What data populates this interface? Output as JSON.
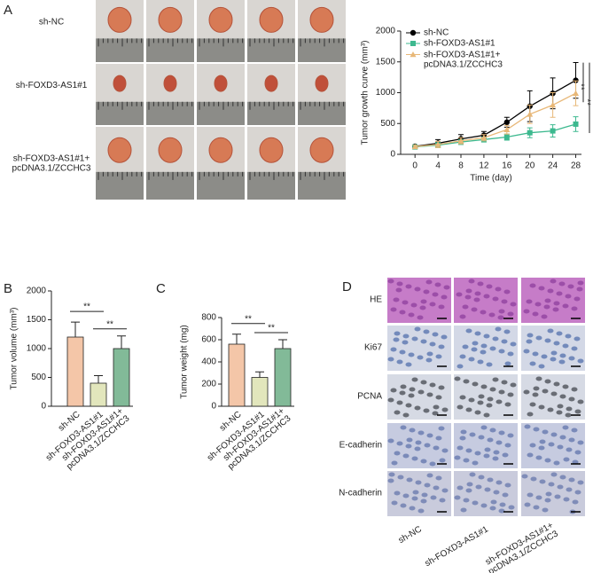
{
  "panel_labels": [
    "A",
    "B",
    "C",
    "D"
  ],
  "tumor_photos": {
    "row_labels": [
      "sh-NC",
      "sh-FOXD3-AS1#1",
      "sh-FOXD3-AS1#1+\npcDNA3.1/ZCCHC3"
    ]
  },
  "ihc": {
    "row_labels": [
      "HE",
      "Ki67",
      "PCNA",
      "E-cadherin",
      "N-cadherin"
    ],
    "column_labels": [
      "sh-NC",
      "sh-FOXD3-AS1#1",
      "sh-FOXD3-AS1#1+\npcDNA3.1/ZCCHC3"
    ]
  },
  "chart_data": [
    {
      "type": "line",
      "x_label": "Time (day)",
      "y_label": "Tumor growth curve (mm³)",
      "x": [
        0,
        4,
        8,
        12,
        16,
        20,
        24,
        28
      ],
      "xlim": [
        -2.5,
        29
      ],
      "xticks": [
        0,
        4,
        8,
        12,
        16,
        20,
        24,
        28
      ],
      "ylim": [
        0,
        2000
      ],
      "yticks": [
        0,
        500,
        1000,
        1500,
        2000
      ],
      "legend": "upper left",
      "series": [
        {
          "name": "sh-NC",
          "color": "#000000",
          "marker": "circle",
          "values": [
            130,
            180,
            250,
            310,
            520,
            780,
            990,
            1200
          ],
          "errors": [
            20,
            60,
            70,
            60,
            80,
            250,
            250,
            290
          ]
        },
        {
          "name": "sh-FOXD3-AS1#1",
          "color": "#3db98f",
          "marker": "square",
          "values": [
            120,
            150,
            200,
            240,
            280,
            350,
            380,
            490
          ],
          "errors": [
            20,
            40,
            40,
            40,
            50,
            80,
            100,
            120
          ]
        },
        {
          "name": "sh-FOXD3-AS1#1+\npcDNA3.1/ZCCHC3",
          "color": "#e8b878",
          "marker": "triangle",
          "values": [
            125,
            160,
            220,
            270,
            400,
            650,
            800,
            990
          ],
          "errors": [
            20,
            50,
            50,
            50,
            70,
            150,
            200,
            200
          ]
        }
      ],
      "annotations": [
        "**",
        "**"
      ]
    },
    {
      "type": "bar",
      "y_label": "Tumor volume (mm³)",
      "categories": [
        "sh-NC",
        "sh-FOXD3-AS1#1",
        "sh-FOXD3-AS1#1+\npcDNA3.1/ZCCHC3"
      ],
      "values": [
        1200,
        400,
        1000
      ],
      "errors": [
        260,
        130,
        220
      ],
      "colors": [
        "#f4c6a8",
        "#e2e6bc",
        "#82ba98"
      ],
      "ylim": [
        0,
        2000
      ],
      "yticks": [
        0,
        500,
        1000,
        1500,
        2000
      ],
      "annotations": [
        "**",
        "**"
      ]
    },
    {
      "type": "bar",
      "y_label": "Tumor weight (mg)",
      "categories": [
        "sh-NC",
        "sh-FOXD3-AS1#1",
        "sh-FOXD3-AS1#1+\npcDNA3.1/ZCCHC3"
      ],
      "values": [
        560,
        260,
        520
      ],
      "errors": [
        90,
        50,
        80
      ],
      "colors": [
        "#f4c6a8",
        "#e2e6bc",
        "#82ba98"
      ],
      "ylim": [
        0,
        800
      ],
      "yticks": [
        0,
        200,
        400,
        600,
        800
      ],
      "annotations": [
        "**",
        "**"
      ]
    }
  ]
}
